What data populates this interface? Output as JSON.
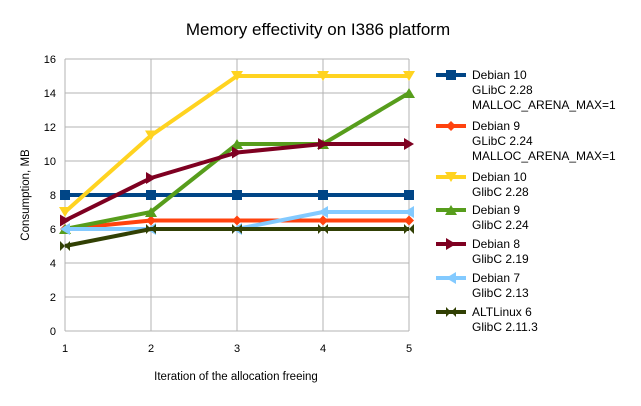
{
  "chart_data": {
    "type": "line",
    "title": "Memory effectivity on I386 platform",
    "xlabel": "Iteration of the allocation freeing",
    "ylabel": "Consumption, MB",
    "x": [
      1,
      2,
      3,
      4,
      5
    ],
    "x_ticks": [
      "1",
      "2",
      "3",
      "4",
      "5"
    ],
    "ylim": [
      0,
      16
    ],
    "y_ticks": [
      "0",
      "2",
      "4",
      "6",
      "8",
      "10",
      "12",
      "14",
      "16"
    ],
    "grid": true,
    "legend_position": "right",
    "series": [
      {
        "name": [
          "Debian 10",
          "GLibC 2.28",
          "MALLOC_ARENA_MAX=1"
        ],
        "color": "#004586",
        "marker": "square",
        "values": [
          8,
          8,
          8,
          8,
          8
        ]
      },
      {
        "name": [
          "Debian 9",
          "GLibC 2.24",
          "MALLOC_ARENA_MAX=1"
        ],
        "color": "#ff420e",
        "marker": "diamond",
        "values": [
          6,
          6.5,
          6.5,
          6.5,
          6.5
        ]
      },
      {
        "name": [
          "Debian 10",
          "GlibC 2.28"
        ],
        "color": "#ffd320",
        "marker": "tri-down",
        "values": [
          7,
          11.5,
          15,
          15,
          15
        ]
      },
      {
        "name": [
          "Debian 9",
          "GlibC 2.24"
        ],
        "color": "#579d1c",
        "marker": "tri-up",
        "values": [
          6,
          7,
          11,
          11,
          14
        ]
      },
      {
        "name": [
          "Debian 8",
          "GlibC 2.19"
        ],
        "color": "#7e0021",
        "marker": "tri-right",
        "values": [
          6.5,
          9,
          10.5,
          11,
          11
        ]
      },
      {
        "name": [
          "Debian 7",
          "GlibC 2.13"
        ],
        "color": "#83caff",
        "marker": "tri-left",
        "values": [
          6,
          6,
          6,
          7,
          7
        ]
      },
      {
        "name": [
          "ALTLinux 6",
          "GlibC 2.11.3"
        ],
        "color": "#314004",
        "marker": "bowtie",
        "values": [
          5,
          6,
          6,
          6,
          6
        ]
      }
    ]
  }
}
